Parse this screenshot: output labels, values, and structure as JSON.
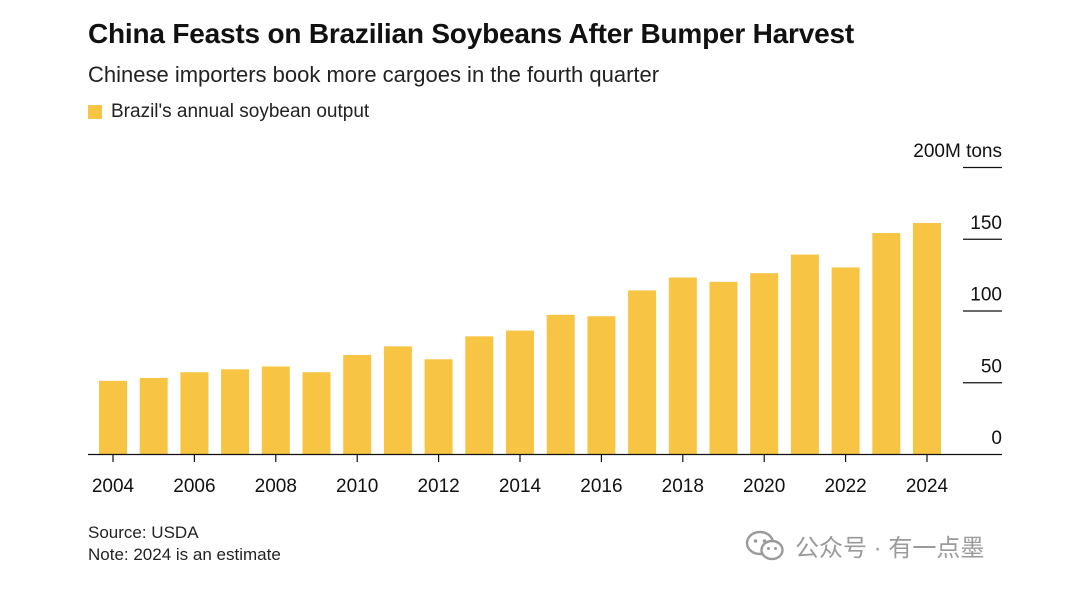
{
  "colors": {
    "bar": "#F7C543",
    "axis": "#111111",
    "text": "#111111",
    "watermark": "#9a9a9a"
  },
  "chart_data": {
    "type": "bar",
    "title": "China Feasts on Brazilian Soybeans After Bumper Harvest",
    "subtitle": "Chinese importers book more cargoes in the fourth quarter",
    "legend": "Brazil's annual soybean output",
    "unit_label": "200M tons",
    "categories": [
      "2004",
      "2005",
      "2006",
      "2007",
      "2008",
      "2009",
      "2010",
      "2011",
      "2012",
      "2013",
      "2014",
      "2015",
      "2016",
      "2017",
      "2018",
      "2019",
      "2020",
      "2021",
      "2022",
      "2023",
      "2024"
    ],
    "values": [
      51,
      53,
      57,
      59,
      61,
      57,
      69,
      75,
      66,
      82,
      86,
      97,
      96,
      114,
      123,
      120,
      126,
      139,
      130,
      154,
      161
    ],
    "x_tick_labels": [
      "2004",
      "2006",
      "2008",
      "2010",
      "2012",
      "2014",
      "2016",
      "2018",
      "2020",
      "2022",
      "2024"
    ],
    "y_ticks": [
      {
        "value": 200,
        "label": "200M tons"
      },
      {
        "value": 150,
        "label": "150"
      },
      {
        "value": 100,
        "label": "100"
      },
      {
        "value": 50,
        "label": "50"
      },
      {
        "value": 0,
        "label": "0"
      }
    ],
    "ylim": [
      0,
      200
    ],
    "xlabel": "",
    "ylabel": ""
  },
  "footer": {
    "source": "Source: USDA",
    "note": "Note: 2024 is an estimate"
  },
  "watermark": {
    "text": "公众号 · 有一点墨",
    "icon": "wechat-icon"
  }
}
